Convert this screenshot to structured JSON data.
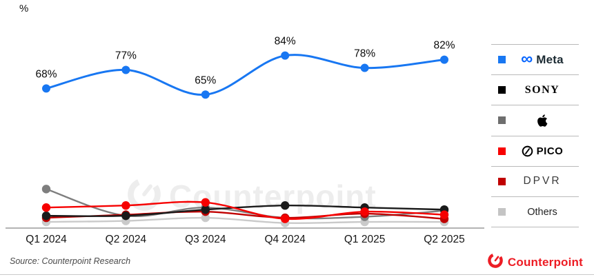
{
  "unit_label": "%",
  "watermark": {
    "text": "Counterpoint"
  },
  "source_note": "Source: Counterpoint Research",
  "footer_logo": {
    "text": "Counterpoint",
    "color": "#ED1C24"
  },
  "chart_data": {
    "type": "line",
    "title": "",
    "xlabel": "",
    "ylabel": "%",
    "ylim": [
      0,
      100
    ],
    "grid": false,
    "legend_position": "right",
    "categories": [
      "Q1 2024",
      "Q2 2024",
      "Q3 2024",
      "Q4 2024",
      "Q1 2025",
      "Q2 2025"
    ],
    "series": [
      {
        "name": "Meta",
        "color": "#1877F2",
        "values": [
          68,
          77,
          65,
          84,
          78,
          82
        ],
        "data_labels": [
          "68%",
          "77%",
          "65%",
          "84%",
          "78%",
          "82%"
        ]
      },
      {
        "name": "Sony",
        "color": "#1A1A1A",
        "values": [
          6,
          6,
          9,
          11,
          10,
          9
        ]
      },
      {
        "name": "Apple",
        "color": "#7E7E7E",
        "values": [
          19,
          6,
          10,
          5,
          5.5,
          8.5
        ]
      },
      {
        "name": "PICO",
        "color": "#F60000",
        "values": [
          10,
          11,
          12.5,
          4.5,
          8,
          6.5
        ]
      },
      {
        "name": "DPVR",
        "color": "#C00000",
        "values": [
          5,
          6.5,
          8,
          5,
          7,
          4.5
        ]
      },
      {
        "name": "Others",
        "color": "#CACACA",
        "values": [
          3,
          3.5,
          5,
          2.5,
          3,
          3
        ]
      }
    ]
  },
  "legend": {
    "items": [
      {
        "brand": "Meta",
        "swatch": "#1877F2",
        "icon": "meta-infinity-icon",
        "label": "Meta"
      },
      {
        "brand": "Sony",
        "swatch": "#000000",
        "icon": "",
        "label": "SONY"
      },
      {
        "brand": "Apple",
        "swatch": "#6E6E6E",
        "icon": "apple-logo-icon",
        "label": ""
      },
      {
        "brand": "PICO",
        "swatch": "#F80000",
        "icon": "pico-circle-icon",
        "label": "PICO"
      },
      {
        "brand": "DPVR",
        "swatch": "#C00000",
        "icon": "",
        "label": "DPVR"
      },
      {
        "brand": "Others",
        "swatch": "#C4C4C4",
        "icon": "",
        "label": "Others"
      }
    ]
  }
}
